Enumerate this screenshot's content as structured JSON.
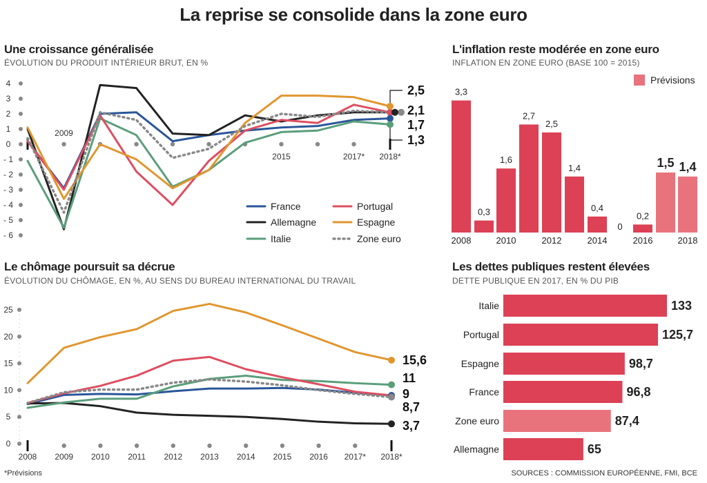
{
  "title": "La reprise se consolide dans la zone euro",
  "footnote": "*Prévisions",
  "sources": "SOURCES : COMMISSION EUROPÉENNE, FMI, BCE",
  "colors": {
    "France": "#2a5699",
    "Allemagne": "#222222",
    "Italie": "#5a9e7a",
    "Portugal": "#dd4e61",
    "Espagne": "#e0962e",
    "Zone euro": "#888888",
    "bar": "#dc4155",
    "bar_light": "#e8737d"
  },
  "chart_data": [
    {
      "type": "line",
      "title": "Une croissance généralisée",
      "subtitle": "ÉVOLUTION DU PRODUIT INTÉRIEUR BRUT, EN %",
      "x": [
        2008,
        2009,
        2010,
        2011,
        2012,
        2013,
        2014,
        2015,
        2016,
        2017,
        2018
      ],
      "x_tick_labels": [
        {
          "x": 2009,
          "label": "2009"
        },
        {
          "x": 2015,
          "label": "2015"
        },
        {
          "x": 2017,
          "label": "2017*"
        },
        {
          "x": 2018,
          "label": "2018*"
        }
      ],
      "ylim": [
        -6,
        4
      ],
      "y_ticks": [
        4,
        3,
        2,
        1,
        0,
        -1,
        -2,
        -3,
        -4,
        -5,
        -6
      ],
      "y_tick_labels": [
        "4",
        "3",
        "2",
        "1",
        "0",
        "- 1",
        "- 2",
        "- 3",
        "- 4",
        "- 5",
        "- 6"
      ],
      "series": [
        {
          "name": "France",
          "values": [
            0.2,
            -2.9,
            2.0,
            2.1,
            0.2,
            0.6,
            0.9,
            1.1,
            1.2,
            1.6,
            1.7
          ],
          "end_label": "1,7"
        },
        {
          "name": "Allemagne",
          "values": [
            1.0,
            -5.6,
            3.9,
            3.7,
            0.7,
            0.6,
            1.9,
            1.5,
            1.9,
            2.1,
            2.1
          ],
          "end_label": "2,1"
        },
        {
          "name": "Italie",
          "values": [
            -1.1,
            -5.5,
            1.7,
            0.6,
            -2.8,
            -1.7,
            0.1,
            0.8,
            0.9,
            1.5,
            1.3
          ],
          "end_label": "1,3"
        },
        {
          "name": "Portugal",
          "values": [
            0.2,
            -3.0,
            1.9,
            -1.8,
            -4.0,
            -1.1,
            0.9,
            1.6,
            1.4,
            2.6,
            2.1
          ],
          "end_label": ""
        },
        {
          "name": "Espagne",
          "values": [
            1.1,
            -3.6,
            0.0,
            -1.0,
            -2.9,
            -1.7,
            1.4,
            3.2,
            3.2,
            3.1,
            2.5
          ],
          "end_label": "2,5"
        },
        {
          "name": "Zone euro",
          "values": [
            0.4,
            -4.5,
            2.1,
            1.6,
            -0.9,
            -0.3,
            1.2,
            2.0,
            1.8,
            2.2,
            2.1
          ],
          "end_label": "",
          "dotted": true
        }
      ],
      "legend": [
        "France",
        "Portugal",
        "Allemagne",
        "Espagne",
        "Italie",
        "Zone euro"
      ],
      "legend_position": "bottom-right"
    },
    {
      "type": "bar",
      "title": "L'inflation reste modérée en zone euro",
      "subtitle": "INFLATION EN ZONE EURO (BASE 100 = 2015)",
      "categories": [
        "2008",
        "2009",
        "2010",
        "2011",
        "2012",
        "2013",
        "2014",
        "2015",
        "2016",
        "2017",
        "2018"
      ],
      "values": [
        3.3,
        0.3,
        1.6,
        2.7,
        2.5,
        1.4,
        0.4,
        0,
        0.2,
        1.5,
        1.4
      ],
      "value_labels": [
        "3,3",
        "0,3",
        "1,6",
        "2,7",
        "2,5",
        "1,4",
        "0,4",
        "0",
        "0,2",
        "1,5",
        "1,4"
      ],
      "forecast": [
        false,
        false,
        false,
        false,
        false,
        false,
        false,
        false,
        false,
        true,
        true
      ],
      "x_tick_labels": [
        "2008",
        "2010",
        "2012",
        "2014",
        "2016",
        "2018"
      ],
      "legend": "Prévisions",
      "legend_position": "top-right"
    },
    {
      "type": "line",
      "title": "Le chômage poursuit sa décrue",
      "subtitle": "ÉVOLUTION DU CHÔMAGE, EN %, AU SENS DU BUREAU INTERNATIONAL DU TRAVAIL",
      "x": [
        2008,
        2009,
        2010,
        2011,
        2012,
        2013,
        2014,
        2015,
        2016,
        2017,
        2018
      ],
      "x_tick_labels": [
        "2008",
        "2009",
        "2010",
        "2011",
        "2012",
        "2013",
        "2014",
        "2015",
        "2016",
        "2017*",
        "2018*"
      ],
      "ylim": [
        0,
        25
      ],
      "y_ticks": [
        25,
        20,
        15,
        10,
        5,
        0
      ],
      "series": [
        {
          "name": "France",
          "values": [
            7.4,
            9.1,
            9.3,
            9.2,
            9.8,
            10.3,
            10.3,
            10.4,
            10.1,
            9.5,
            9.0
          ],
          "end_label": "9"
        },
        {
          "name": "Allemagne",
          "values": [
            7.5,
            7.6,
            7.0,
            5.8,
            5.4,
            5.2,
            5.0,
            4.6,
            4.1,
            3.8,
            3.7
          ],
          "end_label": "3,7"
        },
        {
          "name": "Italie",
          "values": [
            6.7,
            7.7,
            8.4,
            8.4,
            10.7,
            12.1,
            12.7,
            11.9,
            11.7,
            11.3,
            11.0
          ],
          "end_label": "11"
        },
        {
          "name": "Portugal",
          "values": [
            7.6,
            9.4,
            10.8,
            12.7,
            15.5,
            16.2,
            13.9,
            12.4,
            11.1,
            9.7,
            9.0
          ],
          "end_label": ""
        },
        {
          "name": "Espagne",
          "values": [
            11.3,
            17.9,
            19.9,
            21.4,
            24.8,
            26.1,
            24.5,
            22.1,
            19.6,
            17.1,
            15.6
          ],
          "end_label": "15,6"
        },
        {
          "name": "Zone euro",
          "values": [
            7.6,
            9.6,
            10.1,
            10.1,
            11.4,
            12.0,
            11.6,
            10.9,
            10.0,
            9.3,
            8.7
          ],
          "end_label": "8,7",
          "dotted": true
        }
      ]
    },
    {
      "type": "bar",
      "orientation": "horizontal",
      "title": "Les dettes publiques restent élevées",
      "subtitle": "DETTE PUBLIQUE EN 2017, EN % DU PIB",
      "categories": [
        "Italie",
        "Portugal",
        "Espagne",
        "France",
        "Zone euro",
        "Allemagne"
      ],
      "values": [
        133,
        125.7,
        98.7,
        96.8,
        87.4,
        65
      ],
      "value_labels": [
        "133",
        "125,7",
        "98,7",
        "96,8",
        "87,4",
        "65"
      ],
      "highlight": [
        false,
        false,
        false,
        false,
        true,
        false
      ]
    }
  ]
}
